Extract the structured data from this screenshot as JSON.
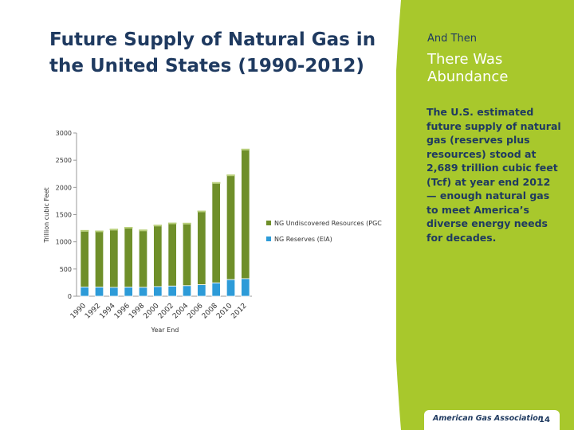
{
  "slide": {
    "title": "Future Supply of Natural Gas in the United States (1990-2012)",
    "kicker": "And Then",
    "heading": "There Was Abundance",
    "body": "The U.S. estimated future supply of natural gas (reserves plus resources) stood at  2,689 trillion cubic feet (Tcf) at year end 2012 — enough natural gas to meet America’s diverse energy needs for decades.",
    "logo_text": "American Gas Association",
    "page_number": "14"
  },
  "colors": {
    "panel": "#a8c82c",
    "title": "#1f3a60",
    "undiscovered": "#6f8f2a",
    "reserves": "#2d9bd8"
  },
  "chart_data": {
    "type": "bar",
    "stacked": true,
    "categories": [
      "1990",
      "1992",
      "1994",
      "1996",
      "1998",
      "2000",
      "2002",
      "2004",
      "2006",
      "2008",
      "2010",
      "2012"
    ],
    "series": [
      {
        "name": "NG Reserves (EIA)",
        "values": [
          170,
          167,
          163,
          166,
          164,
          177,
          186,
          193,
          211,
          245,
          305,
          323
        ]
      },
      {
        "name": "NG Undiscovered Resources (PGC",
        "values": [
          1025,
          1018,
          1055,
          1085,
          1040,
          1115,
          1145,
          1135,
          1340,
          1830,
          1910,
          2366
        ]
      }
    ],
    "title": "",
    "xlabel": "Year End",
    "ylabel": "Trillion cubic Feet",
    "ylim": [
      0,
      3000
    ],
    "yticks": [
      0,
      500,
      1000,
      1500,
      2000,
      2500,
      3000
    ],
    "grid": false,
    "legend": "right"
  }
}
